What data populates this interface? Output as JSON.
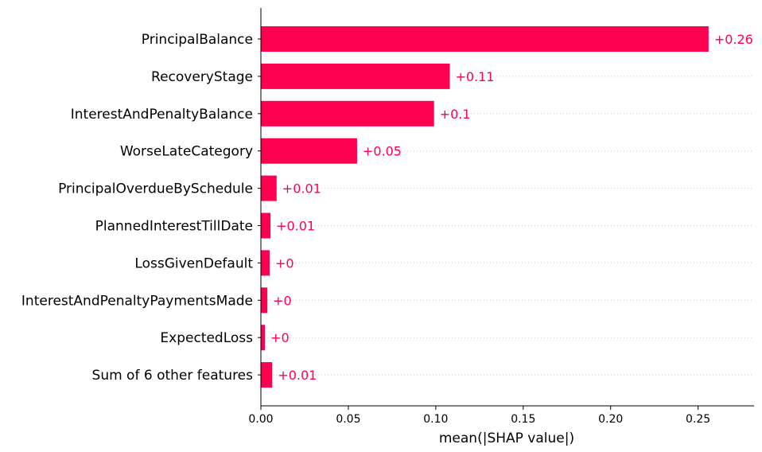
{
  "chart_data": {
    "type": "bar",
    "orientation": "horizontal",
    "title": "",
    "xlabel": "mean(|SHAP value|)",
    "ylabel": "",
    "xlim": [
      0,
      0.282
    ],
    "xticks": [
      0.0,
      0.05,
      0.1,
      0.15,
      0.2,
      0.25
    ],
    "xtick_labels": [
      "0.00",
      "0.05",
      "0.10",
      "0.15",
      "0.20",
      "0.25"
    ],
    "grid": "dotted horizontal lines per row",
    "bar_color": "#ff0051",
    "categories": [
      "PrincipalBalance",
      "RecoveryStage",
      "InterestAndPenaltyBalance",
      "WorseLateCategory",
      "PrincipalOverdueBySchedule",
      "PlannedInterestTillDate",
      "LossGivenDefault",
      "InterestAndPenaltyPaymentsMade",
      "ExpectedLoss",
      "Sum of 6 other features"
    ],
    "values": [
      0.256,
      0.108,
      0.099,
      0.055,
      0.009,
      0.0055,
      0.005,
      0.0037,
      0.0023,
      0.0065
    ],
    "value_labels": [
      "+0.26",
      "+0.11",
      "+0.1",
      "+0.05",
      "+0.01",
      "+0.01",
      "+0",
      "+0",
      "+0",
      "+0.01"
    ]
  }
}
